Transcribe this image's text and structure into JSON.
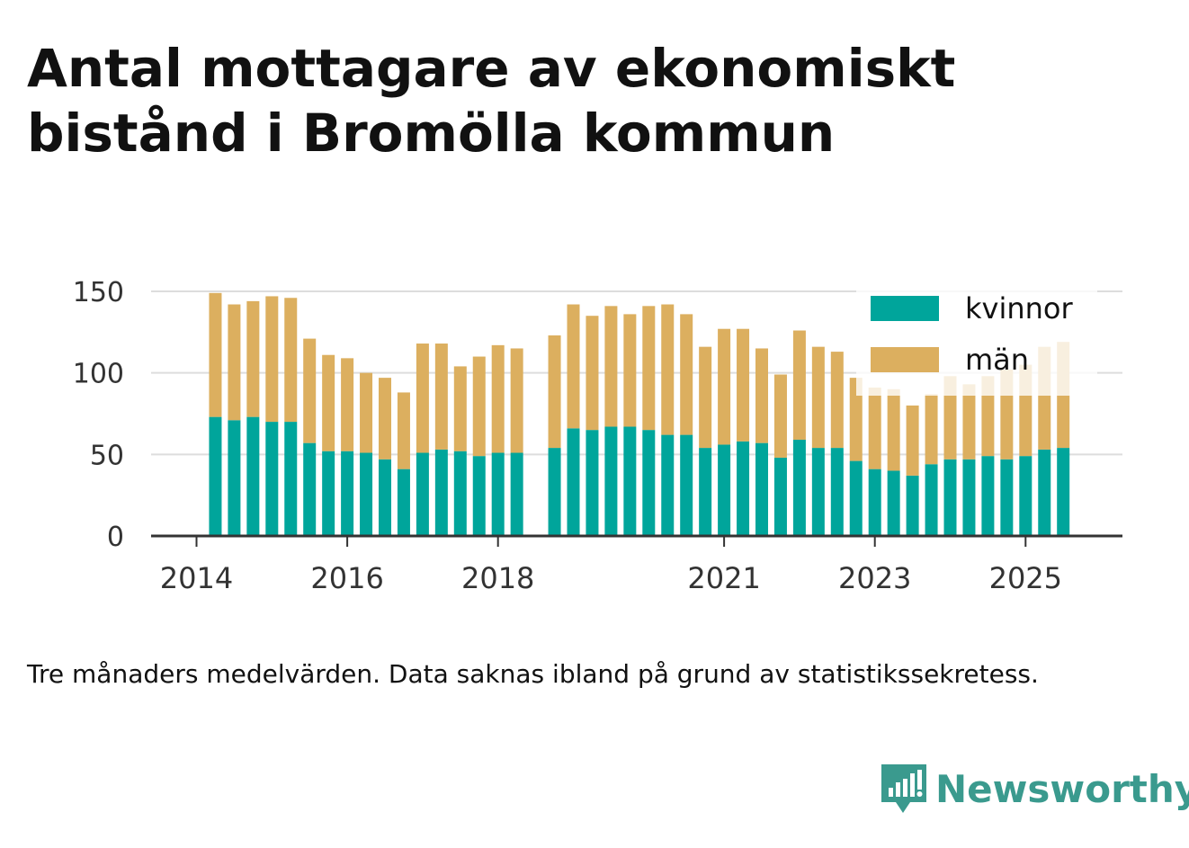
{
  "title": "Antal mottagare av ekonomiskt bistånd i Bromölla kommun",
  "note": "Tre månaders medelvärden. Data saknas ibland på grund av statistikssekretess.",
  "brand": "Newsworthy",
  "colors": {
    "kvinnor": "#00a59b",
    "man": "#dcaf5f",
    "grid": "#dddddd",
    "axis": "#333333"
  },
  "chart_data": {
    "type": "bar",
    "stacked": true,
    "title": "Antal mottagare av ekonomiskt bistånd i Bromölla kommun",
    "x_unit": "quarter",
    "ylim": [
      0,
      150
    ],
    "yticks": [
      0,
      50,
      100,
      150
    ],
    "xticks": [
      "2014",
      "2016",
      "2018",
      "2021",
      "2023",
      "2025"
    ],
    "grid": true,
    "legend_position": "top-right",
    "categories": [
      "2014Q2",
      "2014Q3",
      "2014Q4",
      "2015Q1",
      "2015Q2",
      "2015Q3",
      "2015Q4",
      "2016Q1",
      "2016Q2",
      "2016Q3",
      "2016Q4",
      "2017Q1",
      "2017Q2",
      "2017Q3",
      "2017Q4",
      "2018Q1",
      "2018Q2",
      "2018Q3",
      "2018Q4",
      "2019Q1",
      "2019Q2",
      "2019Q3",
      "2019Q4",
      "2020Q1",
      "2020Q2",
      "2020Q3",
      "2020Q4",
      "2021Q1",
      "2021Q2",
      "2021Q3",
      "2021Q4",
      "2022Q1",
      "2022Q2",
      "2022Q3",
      "2022Q4",
      "2023Q1",
      "2023Q2",
      "2023Q3",
      "2023Q4",
      "2024Q1",
      "2024Q2",
      "2024Q3",
      "2024Q4",
      "2025Q1",
      "2025Q2",
      "2025Q3"
    ],
    "series": [
      {
        "name": "kvinnor",
        "values": [
          73,
          71,
          73,
          70,
          70,
          57,
          52,
          52,
          51,
          47,
          41,
          51,
          53,
          52,
          49,
          51,
          51,
          null,
          54,
          66,
          65,
          67,
          67,
          65,
          62,
          62,
          54,
          56,
          58,
          57,
          48,
          59,
          54,
          54,
          46,
          41,
          40,
          37,
          44,
          47,
          47,
          49,
          47,
          49,
          53,
          54
        ]
      },
      {
        "name": "män",
        "values": [
          76,
          71,
          71,
          77,
          76,
          64,
          59,
          57,
          49,
          50,
          47,
          67,
          65,
          52,
          61,
          66,
          64,
          null,
          69,
          76,
          70,
          74,
          69,
          76,
          80,
          74,
          62,
          71,
          69,
          58,
          51,
          67,
          62,
          59,
          51,
          50,
          50,
          43,
          43,
          51,
          46,
          49,
          55,
          56,
          63,
          65
        ]
      }
    ]
  }
}
